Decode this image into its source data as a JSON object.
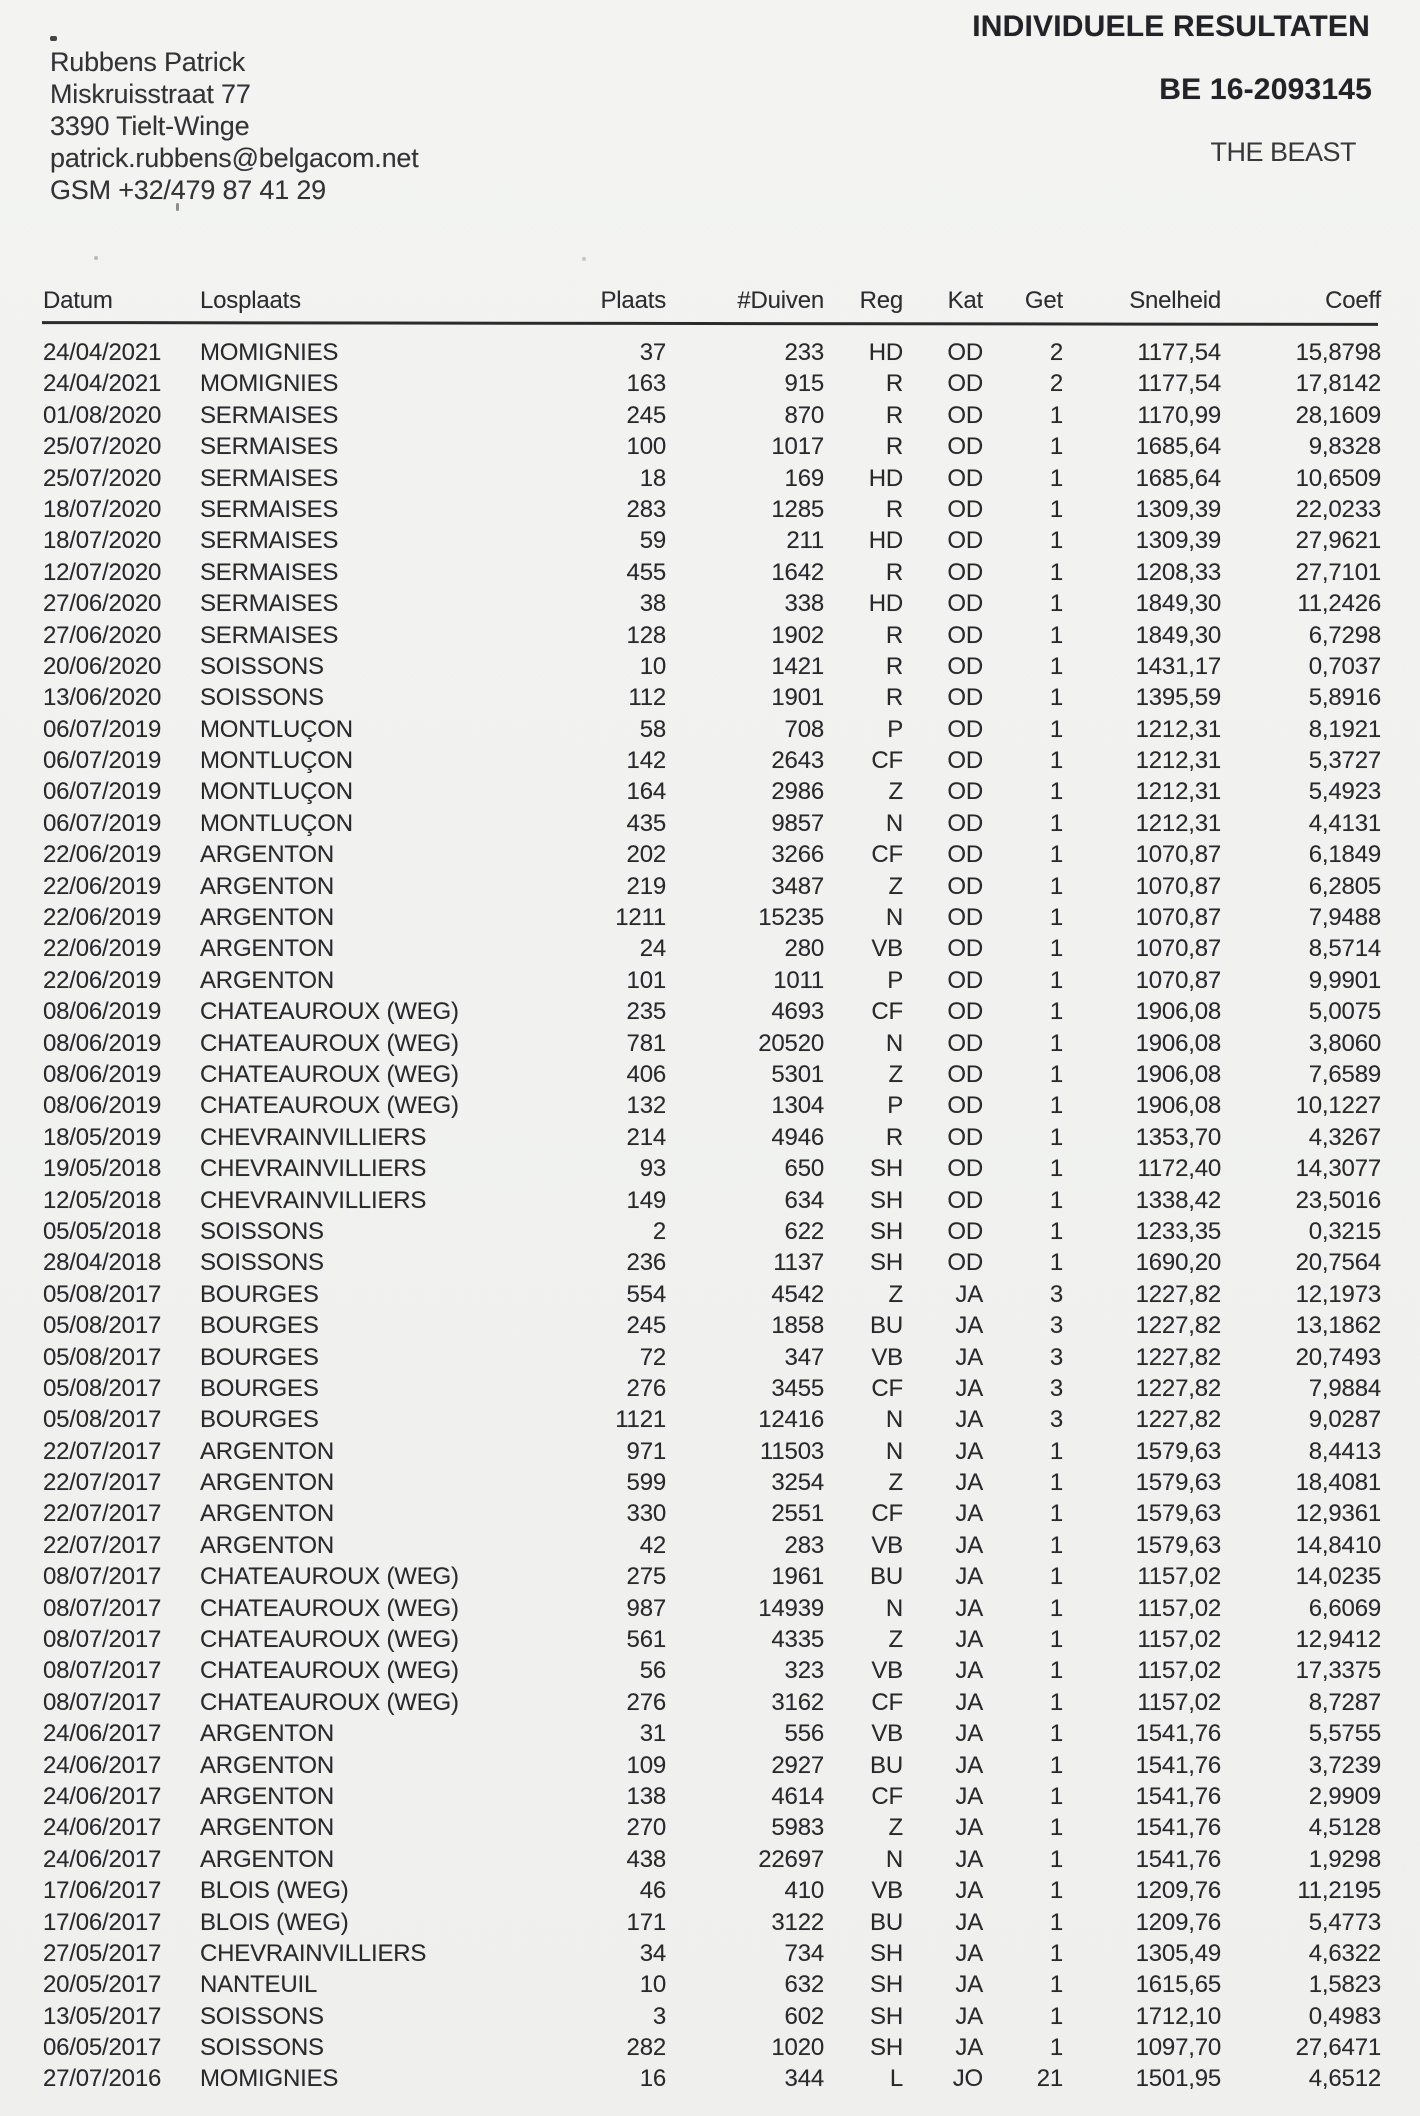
{
  "scan": {
    "background": "#f1f2f0",
    "ink": "#29292c"
  },
  "owner_block": {
    "name": "Rubbens Patrick",
    "street": "Miskruisstraat 77",
    "city": "3390 Tielt-Winge",
    "email": "patrick.rubbens@belgacom.net",
    "phone": "GSM +32/479 87 41 29"
  },
  "title_block": {
    "title": "INDIVIDUELE RESULTATEN",
    "ring_number": "BE 16-2093145",
    "pigeon_name": "THE BEAST"
  },
  "results_table": {
    "columns": [
      {
        "key": "datum",
        "label": "Datum",
        "align": "left"
      },
      {
        "key": "losplaats",
        "label": "Losplaats",
        "align": "left"
      },
      {
        "key": "plaats",
        "label": "Plaats",
        "align": "right"
      },
      {
        "key": "duiven",
        "label": "#Duiven",
        "align": "right"
      },
      {
        "key": "reg",
        "label": "Reg",
        "align": "right"
      },
      {
        "key": "kat",
        "label": "Kat",
        "align": "right"
      },
      {
        "key": "get",
        "label": "Get",
        "align": "right"
      },
      {
        "key": "snelheid",
        "label": "Snelheid",
        "align": "right"
      },
      {
        "key": "coeff",
        "label": "Coeff",
        "align": "right"
      }
    ],
    "rows": [
      [
        "24/04/2021",
        "MOMIGNIES",
        "37",
        "233",
        "HD",
        "OD",
        "2",
        "1177,54",
        "15,8798"
      ],
      [
        "24/04/2021",
        "MOMIGNIES",
        "163",
        "915",
        "R",
        "OD",
        "2",
        "1177,54",
        "17,8142"
      ],
      [
        "01/08/2020",
        "SERMAISES",
        "245",
        "870",
        "R",
        "OD",
        "1",
        "1170,99",
        "28,1609"
      ],
      [
        "25/07/2020",
        "SERMAISES",
        "100",
        "1017",
        "R",
        "OD",
        "1",
        "1685,64",
        "9,8328"
      ],
      [
        "25/07/2020",
        "SERMAISES",
        "18",
        "169",
        "HD",
        "OD",
        "1",
        "1685,64",
        "10,6509"
      ],
      [
        "18/07/2020",
        "SERMAISES",
        "283",
        "1285",
        "R",
        "OD",
        "1",
        "1309,39",
        "22,0233"
      ],
      [
        "18/07/2020",
        "SERMAISES",
        "59",
        "211",
        "HD",
        "OD",
        "1",
        "1309,39",
        "27,9621"
      ],
      [
        "12/07/2020",
        "SERMAISES",
        "455",
        "1642",
        "R",
        "OD",
        "1",
        "1208,33",
        "27,7101"
      ],
      [
        "27/06/2020",
        "SERMAISES",
        "38",
        "338",
        "HD",
        "OD",
        "1",
        "1849,30",
        "11,2426"
      ],
      [
        "27/06/2020",
        "SERMAISES",
        "128",
        "1902",
        "R",
        "OD",
        "1",
        "1849,30",
        "6,7298"
      ],
      [
        "20/06/2020",
        "SOISSONS",
        "10",
        "1421",
        "R",
        "OD",
        "1",
        "1431,17",
        "0,7037"
      ],
      [
        "13/06/2020",
        "SOISSONS",
        "112",
        "1901",
        "R",
        "OD",
        "1",
        "1395,59",
        "5,8916"
      ],
      [
        "06/07/2019",
        "MONTLUÇON",
        "58",
        "708",
        "P",
        "OD",
        "1",
        "1212,31",
        "8,1921"
      ],
      [
        "06/07/2019",
        "MONTLUÇON",
        "142",
        "2643",
        "CF",
        "OD",
        "1",
        "1212,31",
        "5,3727"
      ],
      [
        "06/07/2019",
        "MONTLUÇON",
        "164",
        "2986",
        "Z",
        "OD",
        "1",
        "1212,31",
        "5,4923"
      ],
      [
        "06/07/2019",
        "MONTLUÇON",
        "435",
        "9857",
        "N",
        "OD",
        "1",
        "1212,31",
        "4,4131"
      ],
      [
        "22/06/2019",
        "ARGENTON",
        "202",
        "3266",
        "CF",
        "OD",
        "1",
        "1070,87",
        "6,1849"
      ],
      [
        "22/06/2019",
        "ARGENTON",
        "219",
        "3487",
        "Z",
        "OD",
        "1",
        "1070,87",
        "6,2805"
      ],
      [
        "22/06/2019",
        "ARGENTON",
        "1211",
        "15235",
        "N",
        "OD",
        "1",
        "1070,87",
        "7,9488"
      ],
      [
        "22/06/2019",
        "ARGENTON",
        "24",
        "280",
        "VB",
        "OD",
        "1",
        "1070,87",
        "8,5714"
      ],
      [
        "22/06/2019",
        "ARGENTON",
        "101",
        "1011",
        "P",
        "OD",
        "1",
        "1070,87",
        "9,9901"
      ],
      [
        "08/06/2019",
        "CHATEAUROUX (WEG)",
        "235",
        "4693",
        "CF",
        "OD",
        "1",
        "1906,08",
        "5,0075"
      ],
      [
        "08/06/2019",
        "CHATEAUROUX (WEG)",
        "781",
        "20520",
        "N",
        "OD",
        "1",
        "1906,08",
        "3,8060"
      ],
      [
        "08/06/2019",
        "CHATEAUROUX (WEG)",
        "406",
        "5301",
        "Z",
        "OD",
        "1",
        "1906,08",
        "7,6589"
      ],
      [
        "08/06/2019",
        "CHATEAUROUX (WEG)",
        "132",
        "1304",
        "P",
        "OD",
        "1",
        "1906,08",
        "10,1227"
      ],
      [
        "18/05/2019",
        "CHEVRAINVILLIERS",
        "214",
        "4946",
        "R",
        "OD",
        "1",
        "1353,70",
        "4,3267"
      ],
      [
        "19/05/2018",
        "CHEVRAINVILLIERS",
        "93",
        "650",
        "SH",
        "OD",
        "1",
        "1172,40",
        "14,3077"
      ],
      [
        "12/05/2018",
        "CHEVRAINVILLIERS",
        "149",
        "634",
        "SH",
        "OD",
        "1",
        "1338,42",
        "23,5016"
      ],
      [
        "05/05/2018",
        "SOISSONS",
        "2",
        "622",
        "SH",
        "OD",
        "1",
        "1233,35",
        "0,3215"
      ],
      [
        "28/04/2018",
        "SOISSONS",
        "236",
        "1137",
        "SH",
        "OD",
        "1",
        "1690,20",
        "20,7564"
      ],
      [
        "05/08/2017",
        "BOURGES",
        "554",
        "4542",
        "Z",
        "JA",
        "3",
        "1227,82",
        "12,1973"
      ],
      [
        "05/08/2017",
        "BOURGES",
        "245",
        "1858",
        "BU",
        "JA",
        "3",
        "1227,82",
        "13,1862"
      ],
      [
        "05/08/2017",
        "BOURGES",
        "72",
        "347",
        "VB",
        "JA",
        "3",
        "1227,82",
        "20,7493"
      ],
      [
        "05/08/2017",
        "BOURGES",
        "276",
        "3455",
        "CF",
        "JA",
        "3",
        "1227,82",
        "7,9884"
      ],
      [
        "05/08/2017",
        "BOURGES",
        "1121",
        "12416",
        "N",
        "JA",
        "3",
        "1227,82",
        "9,0287"
      ],
      [
        "22/07/2017",
        "ARGENTON",
        "971",
        "11503",
        "N",
        "JA",
        "1",
        "1579,63",
        "8,4413"
      ],
      [
        "22/07/2017",
        "ARGENTON",
        "599",
        "3254",
        "Z",
        "JA",
        "1",
        "1579,63",
        "18,4081"
      ],
      [
        "22/07/2017",
        "ARGENTON",
        "330",
        "2551",
        "CF",
        "JA",
        "1",
        "1579,63",
        "12,9361"
      ],
      [
        "22/07/2017",
        "ARGENTON",
        "42",
        "283",
        "VB",
        "JA",
        "1",
        "1579,63",
        "14,8410"
      ],
      [
        "08/07/2017",
        "CHATEAUROUX (WEG)",
        "275",
        "1961",
        "BU",
        "JA",
        "1",
        "1157,02",
        "14,0235"
      ],
      [
        "08/07/2017",
        "CHATEAUROUX (WEG)",
        "987",
        "14939",
        "N",
        "JA",
        "1",
        "1157,02",
        "6,6069"
      ],
      [
        "08/07/2017",
        "CHATEAUROUX (WEG)",
        "561",
        "4335",
        "Z",
        "JA",
        "1",
        "1157,02",
        "12,9412"
      ],
      [
        "08/07/2017",
        "CHATEAUROUX (WEG)",
        "56",
        "323",
        "VB",
        "JA",
        "1",
        "1157,02",
        "17,3375"
      ],
      [
        "08/07/2017",
        "CHATEAUROUX (WEG)",
        "276",
        "3162",
        "CF",
        "JA",
        "1",
        "1157,02",
        "8,7287"
      ],
      [
        "24/06/2017",
        "ARGENTON",
        "31",
        "556",
        "VB",
        "JA",
        "1",
        "1541,76",
        "5,5755"
      ],
      [
        "24/06/2017",
        "ARGENTON",
        "109",
        "2927",
        "BU",
        "JA",
        "1",
        "1541,76",
        "3,7239"
      ],
      [
        "24/06/2017",
        "ARGENTON",
        "138",
        "4614",
        "CF",
        "JA",
        "1",
        "1541,76",
        "2,9909"
      ],
      [
        "24/06/2017",
        "ARGENTON",
        "270",
        "5983",
        "Z",
        "JA",
        "1",
        "1541,76",
        "4,5128"
      ],
      [
        "24/06/2017",
        "ARGENTON",
        "438",
        "22697",
        "N",
        "JA",
        "1",
        "1541,76",
        "1,9298"
      ],
      [
        "17/06/2017",
        "BLOIS (WEG)",
        "46",
        "410",
        "VB",
        "JA",
        "1",
        "1209,76",
        "11,2195"
      ],
      [
        "17/06/2017",
        "BLOIS (WEG)",
        "171",
        "3122",
        "BU",
        "JA",
        "1",
        "1209,76",
        "5,4773"
      ],
      [
        "27/05/2017",
        "CHEVRAINVILLIERS",
        "34",
        "734",
        "SH",
        "JA",
        "1",
        "1305,49",
        "4,6322"
      ],
      [
        "20/05/2017",
        "NANTEUIL",
        "10",
        "632",
        "SH",
        "JA",
        "1",
        "1615,65",
        "1,5823"
      ],
      [
        "13/05/2017",
        "SOISSONS",
        "3",
        "602",
        "SH",
        "JA",
        "1",
        "1712,10",
        "0,4983"
      ],
      [
        "06/05/2017",
        "SOISSONS",
        "282",
        "1020",
        "SH",
        "JA",
        "1",
        "1097,70",
        "27,6471"
      ],
      [
        "27/07/2016",
        "MOMIGNIES",
        "16",
        "344",
        "L",
        "JO",
        "21",
        "1501,95",
        "4,6512"
      ]
    ]
  }
}
